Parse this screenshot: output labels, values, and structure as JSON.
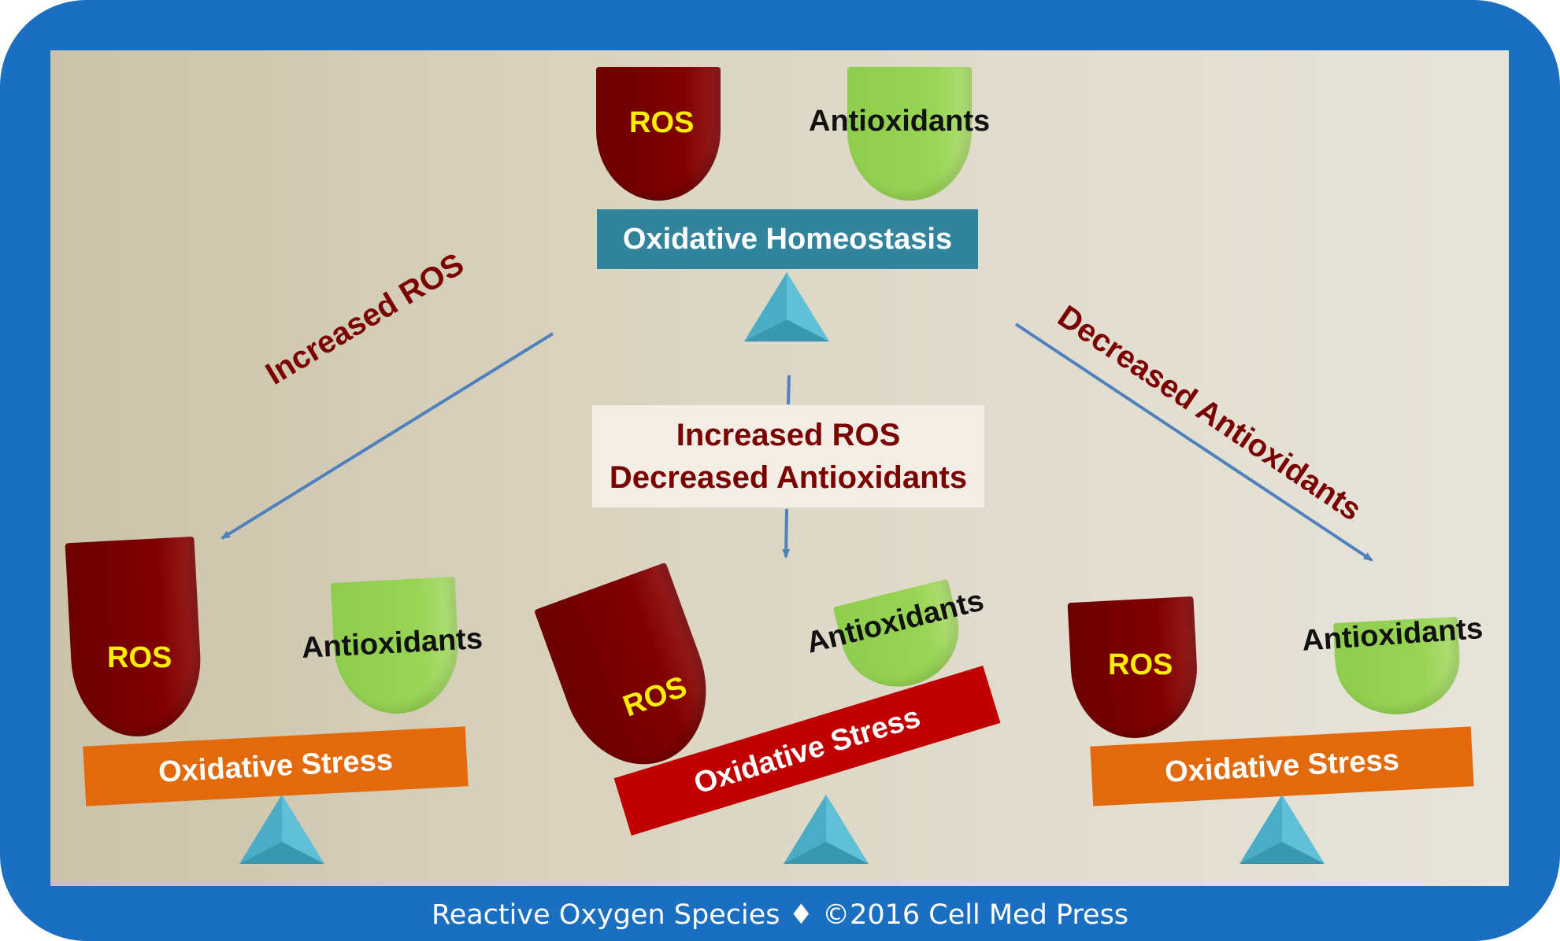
{
  "top_balance": {
    "ros_label": "ROS",
    "antioxidants_label": "Antioxidants",
    "beam_label": "Oxidative Homeostasis"
  },
  "arrows": {
    "left_label": "Increased ROS",
    "right_label": "Decreased Antioxidants",
    "center_line1": "Increased ROS",
    "center_line2": "Decreased Antioxidants"
  },
  "left_balance": {
    "ros_label": "ROS",
    "antioxidants_label": "Antioxidants",
    "beam_label": "Oxidative Stress"
  },
  "center_balance": {
    "ros_label": "ROS",
    "antioxidants_label": "Antioxidants",
    "beam_label": "Oxidative Stress"
  },
  "right_balance": {
    "ros_label": "ROS",
    "antioxidants_label": "Antioxidants",
    "beam_label": "Oxidative Stress"
  },
  "footer": "Reactive Oxygen Species ♦ ©2016 Cell Med Press",
  "colors": {
    "frame": "#1a6fc0",
    "ros": "#800000",
    "antioxidants": "#98d455",
    "homeostasis_beam": "#31849b",
    "stress_beam_orange": "#e36a0c",
    "stress_beam_red": "#c00000",
    "fulcrum": "#4bacc6",
    "arrow": "#4f81bd",
    "arrow_label": "#7b0000"
  }
}
